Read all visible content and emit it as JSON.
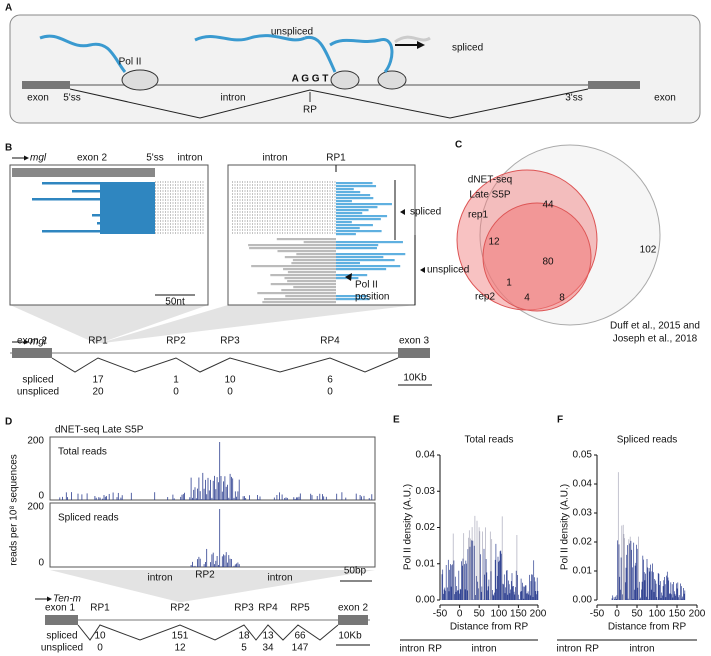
{
  "A": {
    "letter": "A",
    "exon_left": "exon",
    "ss5": "5'ss",
    "pol2": "Pol II",
    "intron": "intron",
    "unspliced": "unspliced",
    "spliced": "spliced",
    "motif": "A G G T",
    "rp": "RP",
    "ss3": "3'ss",
    "exon_right": "exon"
  },
  "B": {
    "letter": "B",
    "gene": "mgl",
    "zoom_left": {
      "exon": "exon 2",
      "ss5": "5'ss",
      "intron": "intron",
      "scale": "50nt"
    },
    "zoom_right": {
      "intron": "intron",
      "rp": "RP1",
      "spliced": "spliced",
      "unspliced": "unspliced",
      "pol2_position": [
        "Pol II",
        "position"
      ]
    },
    "model": {
      "exons": [
        "exon 2",
        "exon 3"
      ],
      "sites": [
        "RP1",
        "RP2",
        "RP3",
        "RP4"
      ],
      "rows": [
        {
          "label": "spliced",
          "counts": [
            17,
            1,
            10,
            6
          ]
        },
        {
          "label": "unspliced",
          "counts": [
            20,
            0,
            0,
            0
          ]
        }
      ],
      "scale": "10Kb"
    }
  },
  "C": {
    "letter": "C",
    "title": [
      "dNET-seq",
      "Late S5P"
    ],
    "rep1": "rep1",
    "rep2": "rep2",
    "regions": {
      "rep1_only_top": 44,
      "rep1_only_left": 12,
      "all": 80,
      "reference_only": 102,
      "rep2_rep1": 1,
      "rep2_only": 4,
      "rep2_reference": 8
    },
    "reference": [
      "Duff et al., 2015 and",
      "Joseph et al., 2018"
    ]
  },
  "D": {
    "letter": "D",
    "title": "dNET-seq Late S5P",
    "ylabel": "reads per 10⁸ sequences",
    "tracks": [
      {
        "name": "Total reads",
        "yticks": [
          200,
          0
        ]
      },
      {
        "name": "Spliced reads",
        "yticks": [
          200,
          0
        ]
      }
    ],
    "zoom": {
      "intron_left": "intron",
      "rp": "RP2",
      "intron_right": "intron",
      "scale": "50bp"
    },
    "gene": "Ten-m",
    "model": {
      "exons": [
        "exon 1",
        "exon 2"
      ],
      "sites": [
        "RP1",
        "RP2",
        "RP3",
        "RP4",
        "RP5"
      ],
      "rows": [
        {
          "label": "spliced",
          "counts": [
            10,
            151,
            18,
            13,
            66
          ]
        },
        {
          "label": "unspliced",
          "counts": [
            0,
            12,
            5,
            34,
            147
          ]
        }
      ],
      "scale": "10Kb"
    }
  },
  "E": {
    "letter": "E",
    "title": "Total reads",
    "ylabel": "Pol II density (A.U.)",
    "xlabel": "Distance from RP",
    "yticks": [
      "0.00",
      "0.01",
      "0.02",
      "0.03",
      "0.04"
    ],
    "xticks": [
      -50,
      0,
      50,
      100,
      150,
      200
    ],
    "regions": [
      "intron",
      "RP",
      "intron"
    ]
  },
  "F": {
    "letter": "F",
    "title": "Spliced reads",
    "ylabel": "Pol II density (A.U.)",
    "xlabel": "Distance from RP",
    "yticks": [
      "0.00",
      "0.01",
      "0.02",
      "0.03",
      "0.04",
      "0.05"
    ],
    "xticks": [
      -50,
      0,
      50,
      100,
      150,
      200
    ],
    "regions": [
      "intron",
      "RP",
      "intron"
    ]
  }
}
